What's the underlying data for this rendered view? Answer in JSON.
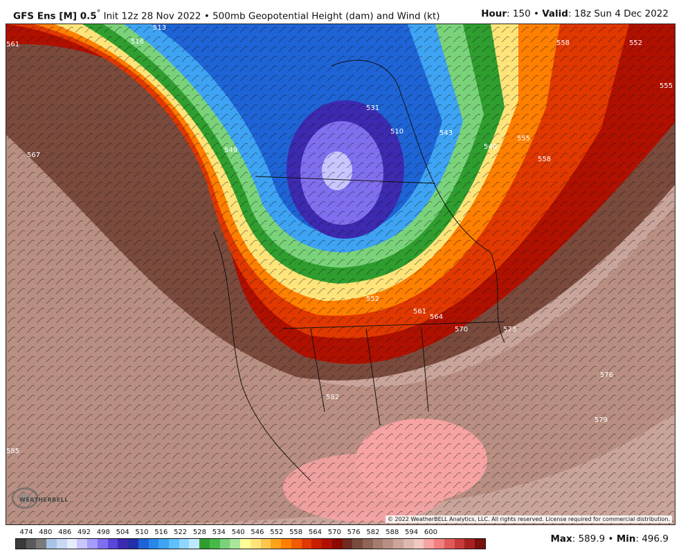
{
  "header": {
    "model": "GFS Ens [M] 0.5",
    "degree": "°",
    "init": "Init 12z 28 Nov 2022",
    "bullet": "•",
    "product": "500mb Geopotential Height (dam) and Wind (kt)",
    "hour_label": "Hour",
    "hour_value": ": 150",
    "valid_label": "Valid",
    "valid_value": ": 18z Sun 4 Dec 2022"
  },
  "map": {
    "copyright": "© 2022 WeatherBELL Analytics, LLC. All rights reserved. License required for commercial distribution.",
    "logo_text": "WEATHERBELL",
    "contour_labels": [
      "513",
      "516",
      "561",
      "558",
      "552",
      "555",
      "567",
      "549",
      "543",
      "510",
      "531",
      "540",
      "555",
      "558",
      "564",
      "561",
      "570",
      "573",
      "576",
      "579",
      "582",
      "585",
      "552"
    ]
  },
  "legend": {
    "values": [
      "474",
      "480",
      "486",
      "492",
      "498",
      "504",
      "510",
      "516",
      "522",
      "528",
      "534",
      "540",
      "546",
      "552",
      "558",
      "564",
      "570",
      "576",
      "582",
      "588",
      "594",
      "600"
    ],
    "colors": [
      "#3a3a3a",
      "#5a5a5a",
      "#7a7a7a",
      "#a9c3e6",
      "#c7d9f5",
      "#e6ecfb",
      "#c9c5ff",
      "#a49cff",
      "#7f6fef",
      "#5a46d8",
      "#3c2ab0",
      "#2230a8",
      "#1e64d6",
      "#2b86ea",
      "#3ea3f3",
      "#5fc0ff",
      "#8dd7ff",
      "#bfe8ff",
      "#2f9e2f",
      "#48b948",
      "#7ad37a",
      "#a9e69c",
      "#ffff99",
      "#ffe47a",
      "#ffc64d",
      "#ffa31a",
      "#ff7f00",
      "#f25c00",
      "#e03800",
      "#c81e00",
      "#b01000",
      "#8a0a00",
      "#6e2b22",
      "#7a4a3d",
      "#8f6356",
      "#a57c70",
      "#b98f83",
      "#cca59a",
      "#deb8ae",
      "#efc9c0",
      "#f7a3a3",
      "#f08080",
      "#e05a5a",
      "#c83a3a",
      "#a82020",
      "#7a1010"
    ],
    "stats_max_label": "Max",
    "stats_max": ": 589.9",
    "stats_min_label": "Min",
    "stats_min": ": 496.9"
  }
}
